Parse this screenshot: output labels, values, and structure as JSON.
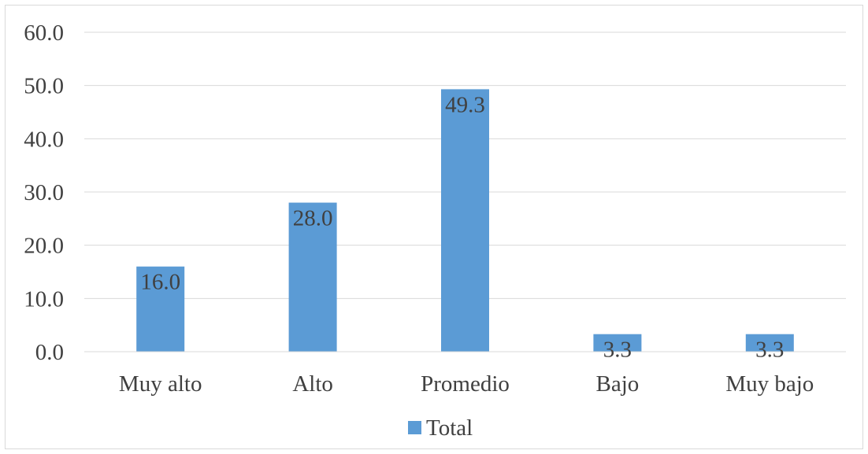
{
  "chart_data": {
    "type": "bar",
    "categories": [
      "Muy alto",
      "Alto",
      "Promedio",
      "Bajo",
      "Muy bajo"
    ],
    "series": [
      {
        "name": "Total",
        "values": [
          16.0,
          28.0,
          49.3,
          3.3,
          3.3
        ],
        "color": "#5b9bd5"
      }
    ],
    "value_labels": [
      "16.0",
      "28.0",
      "49.3",
      "3.3",
      "3.3"
    ],
    "y_ticks": [
      "0.0",
      "10.0",
      "20.0",
      "30.0",
      "40.0",
      "50.0",
      "60.0"
    ],
    "ylim": [
      0,
      60
    ],
    "grid": true,
    "legend": "bottom",
    "colors": {
      "gridline": "#d9d9d9",
      "text": "#404040",
      "border": "#d9d9d9"
    }
  }
}
